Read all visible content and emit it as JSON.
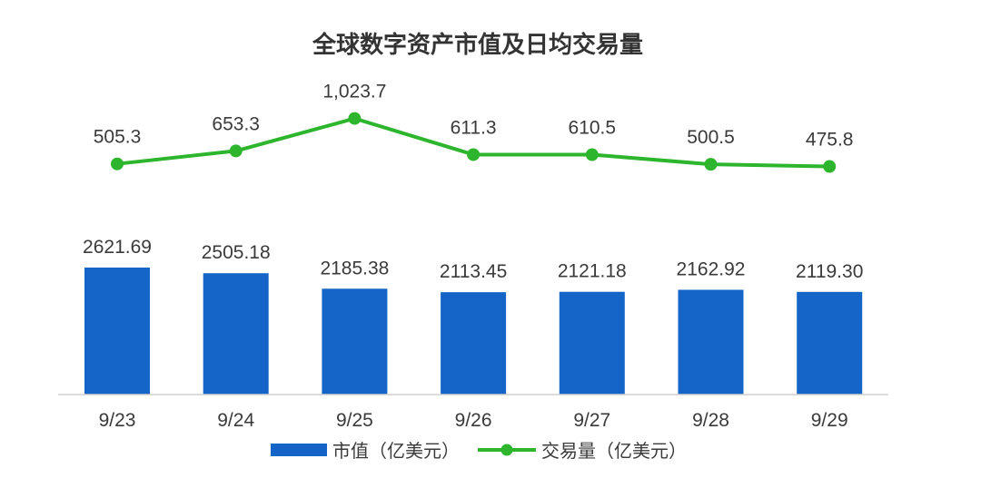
{
  "chart_data": {
    "type": "bar",
    "title": "全球数字资产市值及日均交易量",
    "categories": [
      "9/23",
      "9/24",
      "9/25",
      "9/26",
      "9/27",
      "9/28",
      "9/29"
    ],
    "series": [
      {
        "name": "市值（亿美元）",
        "type": "bar",
        "color": "#1565c8",
        "values": [
          2621.69,
          2505.18,
          2185.38,
          2113.45,
          2121.18,
          2162.92,
          2119.3
        ],
        "labels": [
          "2621.69",
          "2505.18",
          "2185.38",
          "2113.45",
          "2121.18",
          "2162.92",
          "2119.30"
        ]
      },
      {
        "name": "交易量（亿美元）",
        "type": "line",
        "color": "#2db52d",
        "values": [
          505.3,
          653.3,
          1023.7,
          611.3,
          610.5,
          500.5,
          475.8
        ],
        "labels": [
          "505.3",
          "653.3",
          "1,023.7",
          "611.3",
          "610.5",
          "500.5",
          "475.8"
        ]
      }
    ],
    "legend_position": "bottom",
    "grid": false
  }
}
